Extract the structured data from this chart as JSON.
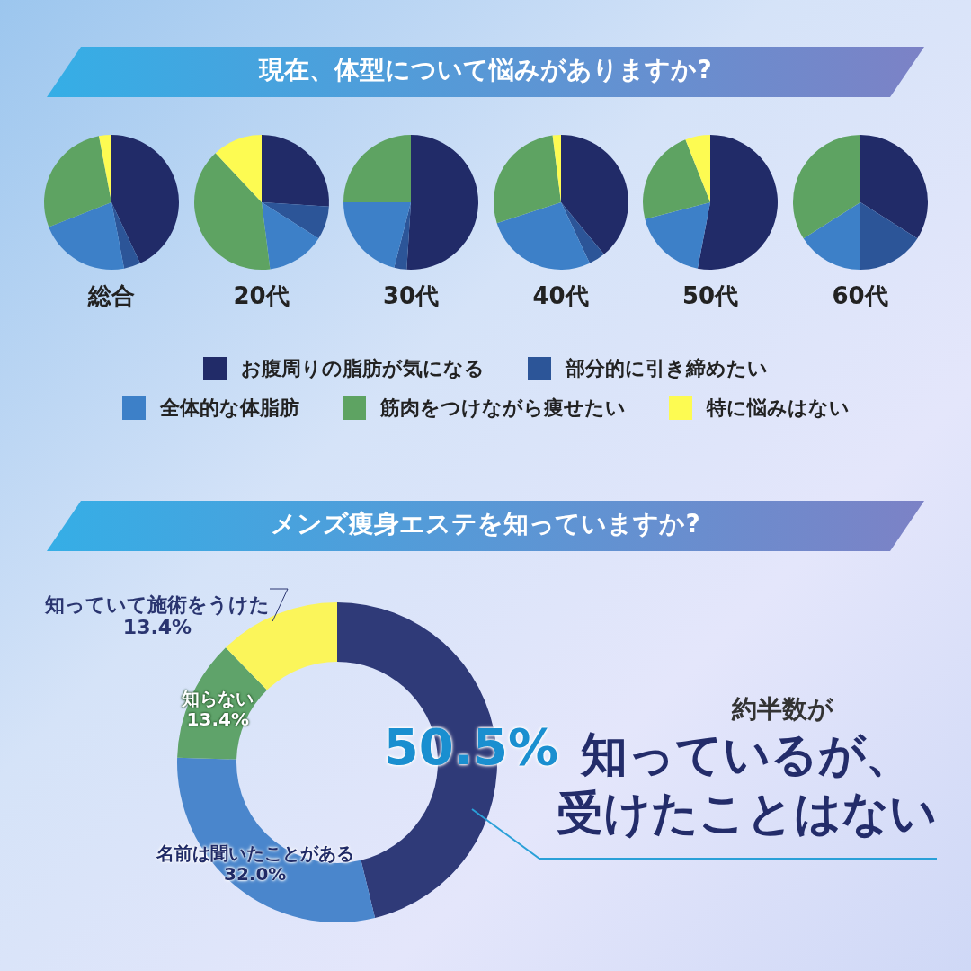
{
  "chart_data": [
    {
      "type": "pie",
      "title": "現在、体型について悩みがありますか?",
      "xlabel": "総合",
      "legend": "bottom",
      "categories": [
        "お腹周りの脂肪が気になる",
        "部分的に引き締めたい",
        "全体的な体脂肪",
        "筋肉をつけながら痩せたい",
        "特に悩みはない"
      ],
      "colors": [
        "#212b68",
        "#2c5598",
        "#3d80c8",
        "#5ea362",
        "#fdfb52"
      ],
      "values": [
        43,
        4,
        22,
        28,
        3
      ]
    },
    {
      "type": "pie",
      "xlabel": "20代",
      "colors": [
        "#212b68",
        "#2c5598",
        "#3d80c8",
        "#5ea362",
        "#fdfb52"
      ],
      "values": [
        26,
        8,
        14,
        40,
        12
      ]
    },
    {
      "type": "pie",
      "xlabel": "30代",
      "colors": [
        "#212b68",
        "#2c5598",
        "#3d80c8",
        "#5ea362",
        "#fdfb52"
      ],
      "values": [
        51,
        3,
        21,
        25,
        0
      ]
    },
    {
      "type": "pie",
      "xlabel": "40代",
      "colors": [
        "#212b68",
        "#2c5598",
        "#3d80c8",
        "#5ea362",
        "#fdfb52"
      ],
      "values": [
        39,
        4,
        27,
        28,
        2
      ]
    },
    {
      "type": "pie",
      "xlabel": "50代",
      "colors": [
        "#212b68",
        "#2c5598",
        "#3d80c8",
        "#5ea362",
        "#fdfb52"
      ],
      "values": [
        53,
        0,
        18,
        23,
        6
      ]
    },
    {
      "type": "pie",
      "xlabel": "60代",
      "colors": [
        "#212b68",
        "#2c5598",
        "#3d80c8",
        "#5ea362",
        "#fdfb52"
      ],
      "values": [
        34,
        16,
        16,
        34,
        0
      ]
    },
    {
      "type": "donut",
      "title": "メンズ痩身エステを知っていますか?",
      "categories": [
        null,
        "名前は聞いたことがある",
        "知らない",
        "知っていて施術をうけた"
      ],
      "colors": [
        "#2f3a78",
        "#4a86cc",
        "#5fa36a",
        "#fbf55a"
      ],
      "values": [
        50.5,
        32.0,
        13.4,
        13.4
      ],
      "value_labels": [
        "50.5%",
        "32.0%",
        "13.4%",
        "13.4%"
      ],
      "annotations": [
        "約半数が",
        "知っているが、",
        "受けたことはない"
      ]
    }
  ]
}
